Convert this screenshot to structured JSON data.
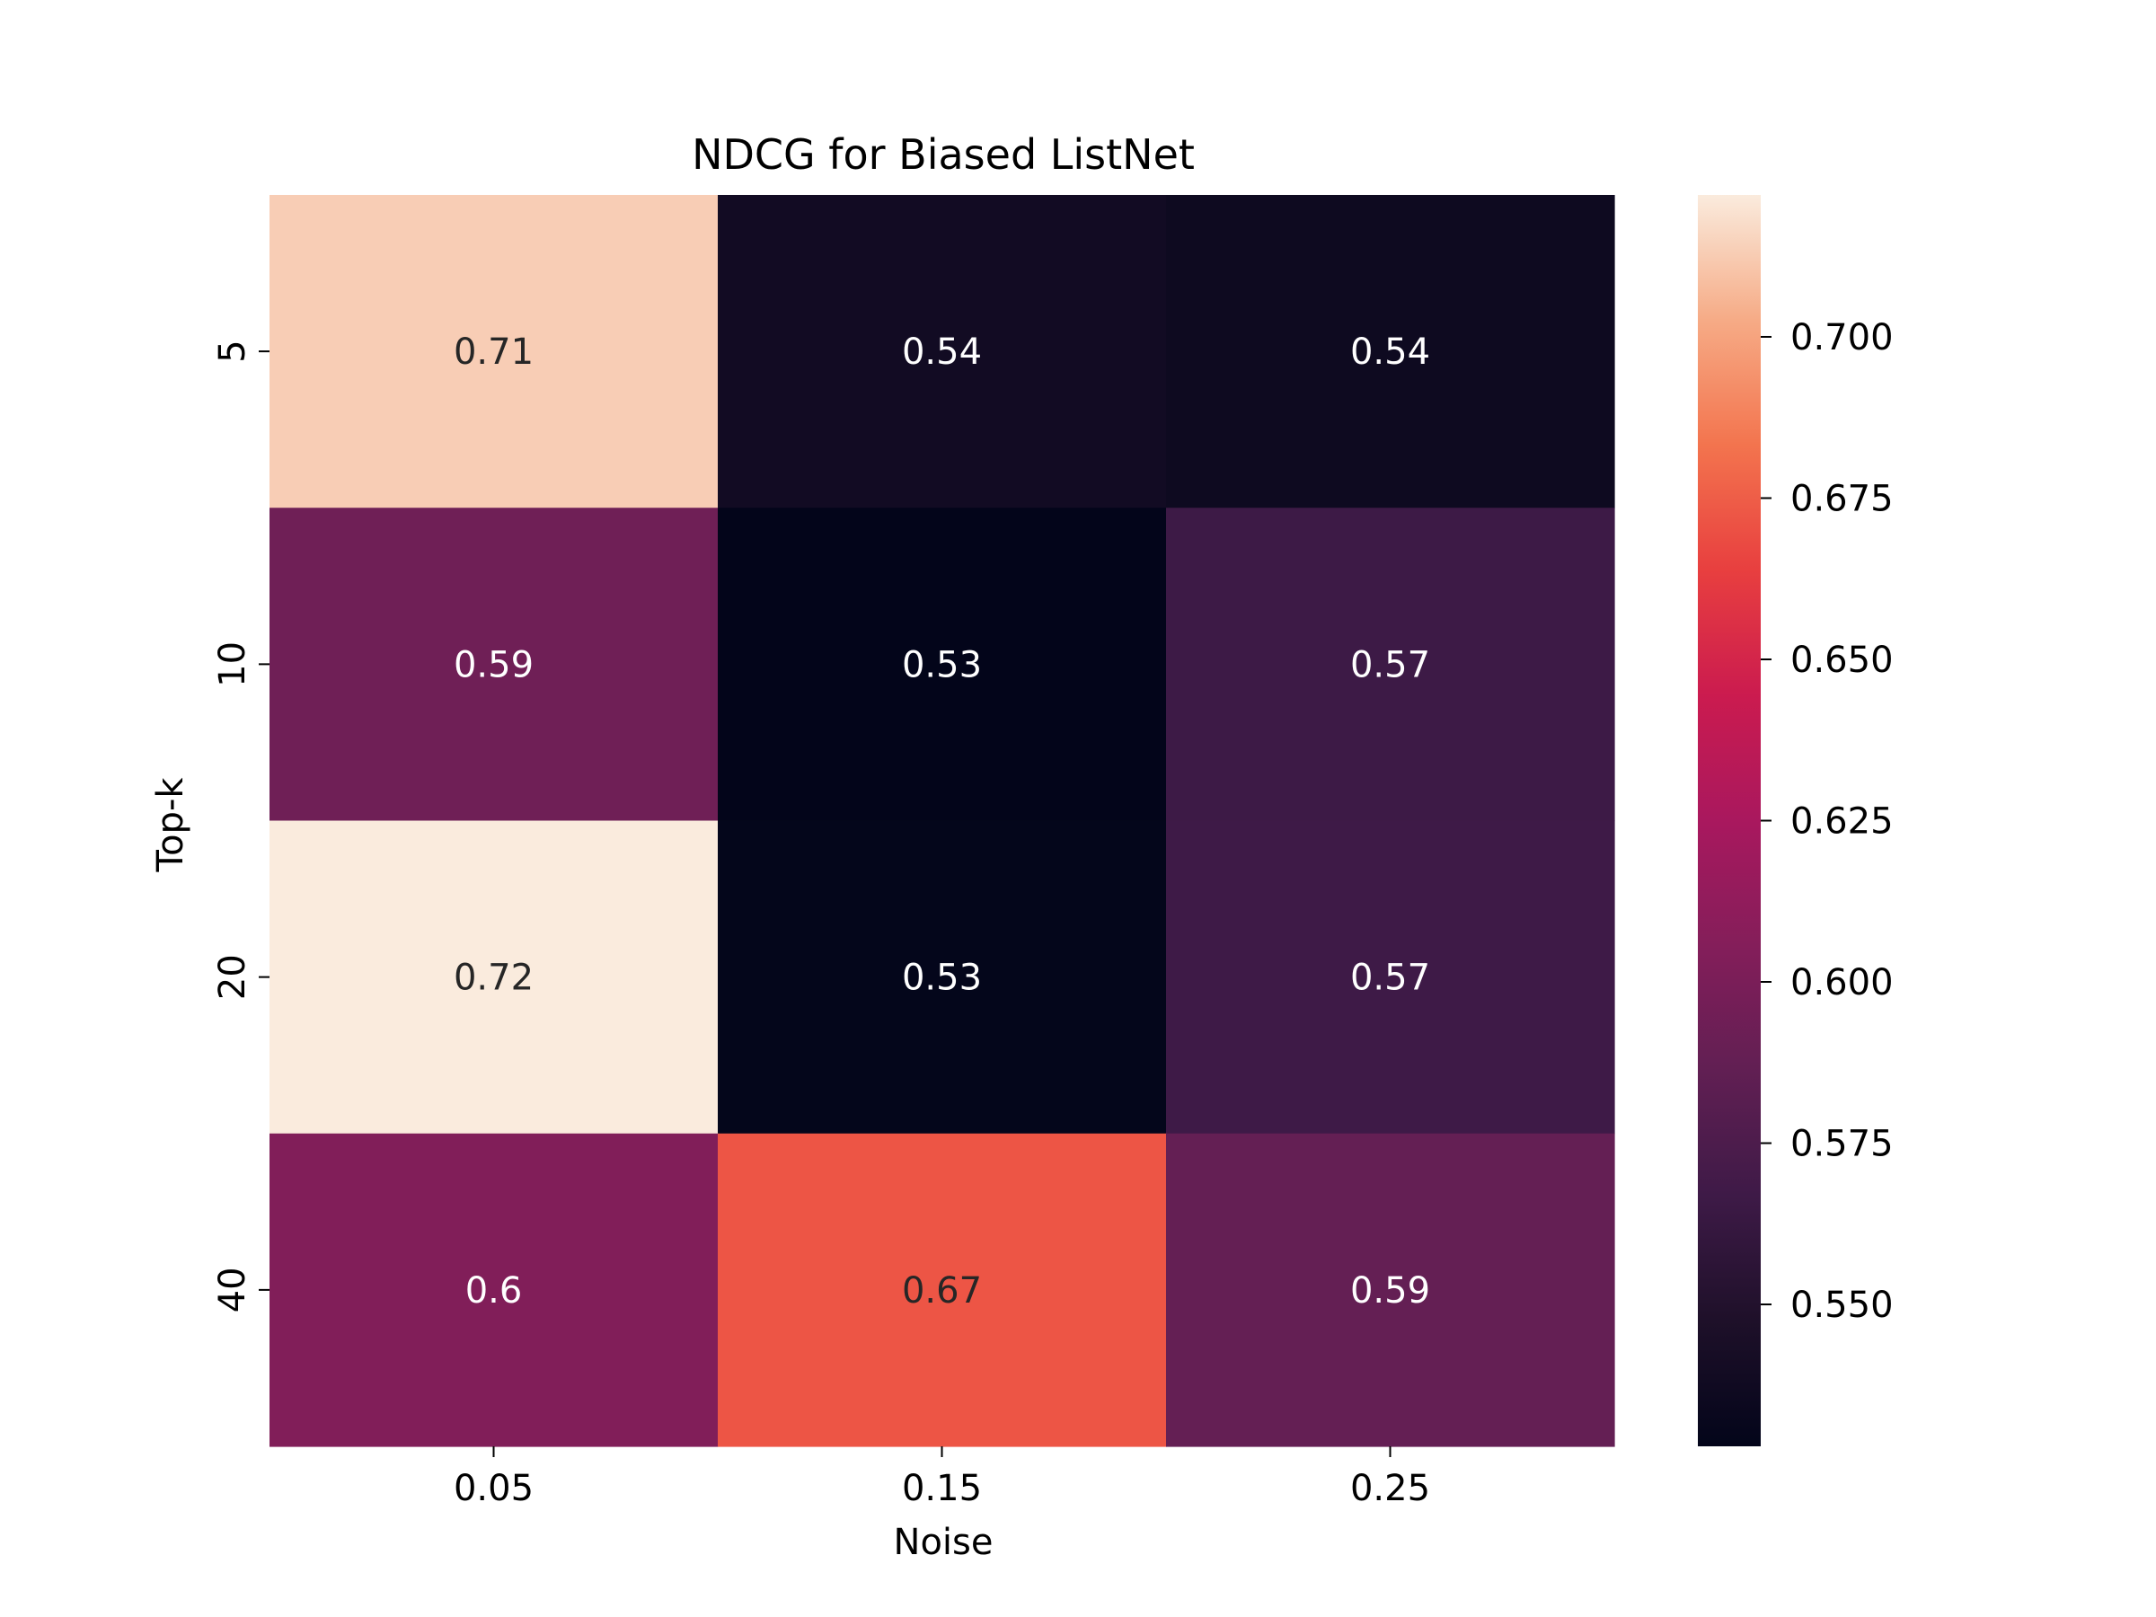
{
  "chart_data": {
    "type": "heatmap",
    "title": "NDCG for Biased ListNet",
    "xlabel": "Noise",
    "ylabel": "Top-k",
    "x_categories": [
      "0.05",
      "0.15",
      "0.25"
    ],
    "y_categories": [
      "5",
      "10",
      "20",
      "40"
    ],
    "values": [
      [
        0.713,
        0.539,
        0.536
      ],
      [
        0.594,
        0.528,
        0.566
      ],
      [
        0.722,
        0.529,
        0.567
      ],
      [
        0.604,
        0.672,
        0.588
      ]
    ],
    "annotations": [
      [
        "0.71",
        "0.54",
        "0.54"
      ],
      [
        "0.59",
        "0.53",
        "0.57"
      ],
      [
        "0.72",
        "0.53",
        "0.57"
      ],
      [
        "0.6",
        "0.67",
        "0.59"
      ]
    ],
    "colorbar": {
      "vmin": 0.528,
      "vmax": 0.722,
      "ticks": [
        "0.550",
        "0.575",
        "0.600",
        "0.625",
        "0.650",
        "0.675",
        "0.700"
      ]
    },
    "colormap": "rocket",
    "grid": false,
    "legend": "colorbar-right"
  }
}
